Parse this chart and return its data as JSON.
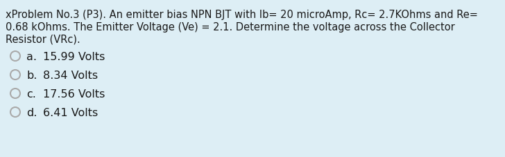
{
  "background_color": "#ddeef5",
  "text_color": "#1a1a1a",
  "radio_color": "#aaaaaa",
  "question_lines": [
    "xProblem No.3 (P3). An emitter bias NPN BJT with Ib= 20 microAmp, Rc= 2.7KOhms and Re=",
    "0.68 kOhms. The Emitter Voltage (Ve) = 2.1. Determine the voltage across the Collector",
    "Resistor (VRc)."
  ],
  "options": [
    {
      "label": "a.",
      "value": "15.99 Volts"
    },
    {
      "label": "b.",
      "value": "8.34 Volts"
    },
    {
      "label": "c.",
      "value": "17.56 Volts"
    },
    {
      "label": "d.",
      "value": "6.41 Volts"
    }
  ],
  "font_size_question": 10.5,
  "font_size_options": 11.5,
  "figsize": [
    7.28,
    2.27
  ],
  "dpi": 100
}
